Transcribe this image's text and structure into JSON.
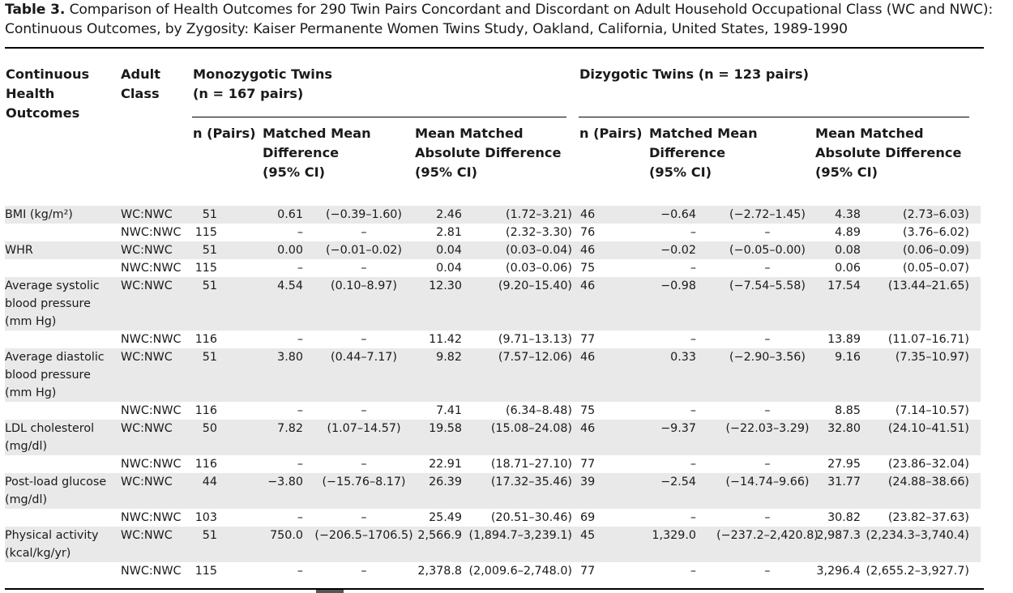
{
  "caption": {
    "label": "Table 3.",
    "text": "Comparison of Health Outcomes for 290 Twin Pairs Concordant and Discordant on Adult Household Occupational Class (WC and NWC): Continuous Outcomes, by Zygosity: Kaiser Permanente Women Twins Study, Oakland, California, United States, 1989-1990"
  },
  "headers": {
    "outcome": [
      "Continuous",
      "Health",
      "Outcomes"
    ],
    "adult_class": [
      "Adult",
      "Class"
    ],
    "mz_title": "Monozygotic Twins",
    "mz_n": "(n = 167 pairs)",
    "dz_title": "Dizygotic Twins (n = 123 pairs)",
    "n_pairs": "n (Pairs)",
    "mmd": [
      "Matched Mean",
      "Difference",
      "(95% CI)"
    ],
    "mmad": [
      "Mean Matched",
      "Absolute Difference",
      "(95% CI)"
    ]
  },
  "rows": [
    {
      "outcome": "BMI (kg/m²)",
      "cls": "WC:NWC",
      "mz_n": "51",
      "mz_mmd": "0.61",
      "mz_mmd_ci": "(−0.39–1.60)",
      "mz_mmad": "2.46",
      "mz_mmad_ci": "(1.72–3.21)",
      "dz_n": "46",
      "dz_mmd": "−0.64",
      "dz_mmd_ci": "(−2.72–1.45)",
      "dz_mmad": "4.38",
      "dz_mmad_ci": "(2.73–6.03)",
      "lines": 1,
      "shade": true
    },
    {
      "outcome": "",
      "cls": "NWC:NWC",
      "mz_n": "115",
      "mz_mmd": "–",
      "mz_mmd_ci": "–",
      "mz_mmad": "2.81",
      "mz_mmad_ci": "(2.32–3.30)",
      "dz_n": "76",
      "dz_mmd": "–",
      "dz_mmd_ci": "–",
      "dz_mmad": "4.89",
      "dz_mmad_ci": "(3.76–6.02)",
      "lines": 1,
      "shade": false
    },
    {
      "outcome": "WHR",
      "cls": "WC:NWC",
      "mz_n": "51",
      "mz_mmd": "0.00",
      "mz_mmd_ci": "(−0.01–0.02)",
      "mz_mmad": "0.04",
      "mz_mmad_ci": "(0.03–0.04)",
      "dz_n": "46",
      "dz_mmd": "−0.02",
      "dz_mmd_ci": "(−0.05–0.00)",
      "dz_mmad": "0.08",
      "dz_mmad_ci": "(0.06–0.09)",
      "lines": 1,
      "shade": true
    },
    {
      "outcome": "",
      "cls": "NWC:NWC",
      "mz_n": "115",
      "mz_mmd": "–",
      "mz_mmd_ci": "–",
      "mz_mmad": "0.04",
      "mz_mmad_ci": "(0.03–0.06)",
      "dz_n": "75",
      "dz_mmd": "–",
      "dz_mmd_ci": "–",
      "dz_mmad": "0.06",
      "dz_mmad_ci": "(0.05–0.07)",
      "lines": 1,
      "shade": false
    },
    {
      "outcome": "Average systolic blood pressure (mm Hg)",
      "cls": "WC:NWC",
      "mz_n": "51",
      "mz_mmd": "4.54",
      "mz_mmd_ci": "(0.10–8.97)",
      "mz_mmad": "12.30",
      "mz_mmad_ci": "(9.20–15.40)",
      "dz_n": "46",
      "dz_mmd": "−0.98",
      "dz_mmd_ci": "(−7.54–5.58)",
      "dz_mmad": "17.54",
      "dz_mmad_ci": "(13.44–21.65)",
      "lines": 3,
      "shade": true
    },
    {
      "outcome": "",
      "cls": "NWC:NWC",
      "mz_n": "116",
      "mz_mmd": "–",
      "mz_mmd_ci": "–",
      "mz_mmad": "11.42",
      "mz_mmad_ci": "(9.71–13.13)",
      "dz_n": "77",
      "dz_mmd": "–",
      "dz_mmd_ci": "–",
      "dz_mmad": "13.89",
      "dz_mmad_ci": "(11.07–16.71)",
      "lines": 1,
      "shade": false
    },
    {
      "outcome": "Average diastolic blood pressure (mm Hg)",
      "cls": "WC:NWC",
      "mz_n": "51",
      "mz_mmd": "3.80",
      "mz_mmd_ci": "(0.44–7.17)",
      "mz_mmad": "9.82",
      "mz_mmad_ci": "(7.57–12.06)",
      "dz_n": "46",
      "dz_mmd": "0.33",
      "dz_mmd_ci": "(−2.90–3.56)",
      "dz_mmad": "9.16",
      "dz_mmad_ci": "(7.35–10.97)",
      "lines": 3,
      "shade": true
    },
    {
      "outcome": "",
      "cls": "NWC:NWC",
      "mz_n": "116",
      "mz_mmd": "–",
      "mz_mmd_ci": "–",
      "mz_mmad": "7.41",
      "mz_mmad_ci": "(6.34–8.48)",
      "dz_n": "75",
      "dz_mmd": "–",
      "dz_mmd_ci": "–",
      "dz_mmad": "8.85",
      "dz_mmad_ci": "(7.14–10.57)",
      "lines": 1,
      "shade": false
    },
    {
      "outcome": "LDL cholesterol (mg/dl)",
      "cls": "WC:NWC",
      "mz_n": "50",
      "mz_mmd": "7.82",
      "mz_mmd_ci": "(1.07–14.57)",
      "mz_mmad": "19.58",
      "mz_mmad_ci": "(15.08–24.08)",
      "dz_n": "46",
      "dz_mmd": "−9.37",
      "dz_mmd_ci": "(−22.03–3.29)",
      "dz_mmad": "32.80",
      "dz_mmad_ci": "(24.10–41.51)",
      "lines": 2,
      "shade": true
    },
    {
      "outcome": "",
      "cls": "NWC:NWC",
      "mz_n": "116",
      "mz_mmd": "–",
      "mz_mmd_ci": "–",
      "mz_mmad": "22.91",
      "mz_mmad_ci": "(18.71–27.10)",
      "dz_n": "77",
      "dz_mmd": "–",
      "dz_mmd_ci": "–",
      "dz_mmad": "27.95",
      "dz_mmad_ci": "(23.86–32.04)",
      "lines": 1,
      "shade": false
    },
    {
      "outcome": "Post-load glucose (mg/dl)",
      "cls": "WC:NWC",
      "mz_n": "44",
      "mz_mmd": "−3.80",
      "mz_mmd_ci": "(−15.76–8.17)",
      "mz_mmad": "26.39",
      "mz_mmad_ci": "(17.32–35.46)",
      "dz_n": "39",
      "dz_mmd": "−2.54",
      "dz_mmd_ci": "(−14.74–9.66)",
      "dz_mmad": "31.77",
      "dz_mmad_ci": "(24.88–38.66)",
      "lines": 2,
      "shade": true
    },
    {
      "outcome": "",
      "cls": "NWC:NWC",
      "mz_n": "103",
      "mz_mmd": "–",
      "mz_mmd_ci": "–",
      "mz_mmad": "25.49",
      "mz_mmad_ci": "(20.51–30.46)",
      "dz_n": "69",
      "dz_mmd": "–",
      "dz_mmd_ci": "–",
      "dz_mmad": "30.82",
      "dz_mmad_ci": "(23.82–37.63)",
      "lines": 1,
      "shade": false
    },
    {
      "outcome": "Physical activity (kcal/kg/yr)",
      "cls": "WC:NWC",
      "mz_n": "51",
      "mz_mmd": "750.0",
      "mz_mmd_ci": "(−206.5–1706.5)",
      "mz_mmad": "2,566.9",
      "mz_mmad_ci": "(1,894.7–3,239.1)",
      "dz_n": "45",
      "dz_mmd": "1,329.0",
      "dz_mmd_ci": "(−237.2–2,420.8)",
      "dz_mmad": "2,987.3",
      "dz_mmad_ci": "(2,234.3–3,740.4)",
      "lines": 2,
      "shade": true
    },
    {
      "outcome": "",
      "cls": "NWC:NWC",
      "mz_n": "115",
      "mz_mmd": "–",
      "mz_mmd_ci": "–",
      "mz_mmad": "2,378.8",
      "mz_mmad_ci": "(2,009.6–2,748.0)",
      "dz_n": "77",
      "dz_mmd": "–",
      "dz_mmd_ci": "–",
      "dz_mmad": "3,296.4",
      "dz_mmad_ci": "(2,655.2–3,927.7)",
      "lines": 1,
      "shade": false
    }
  ]
}
